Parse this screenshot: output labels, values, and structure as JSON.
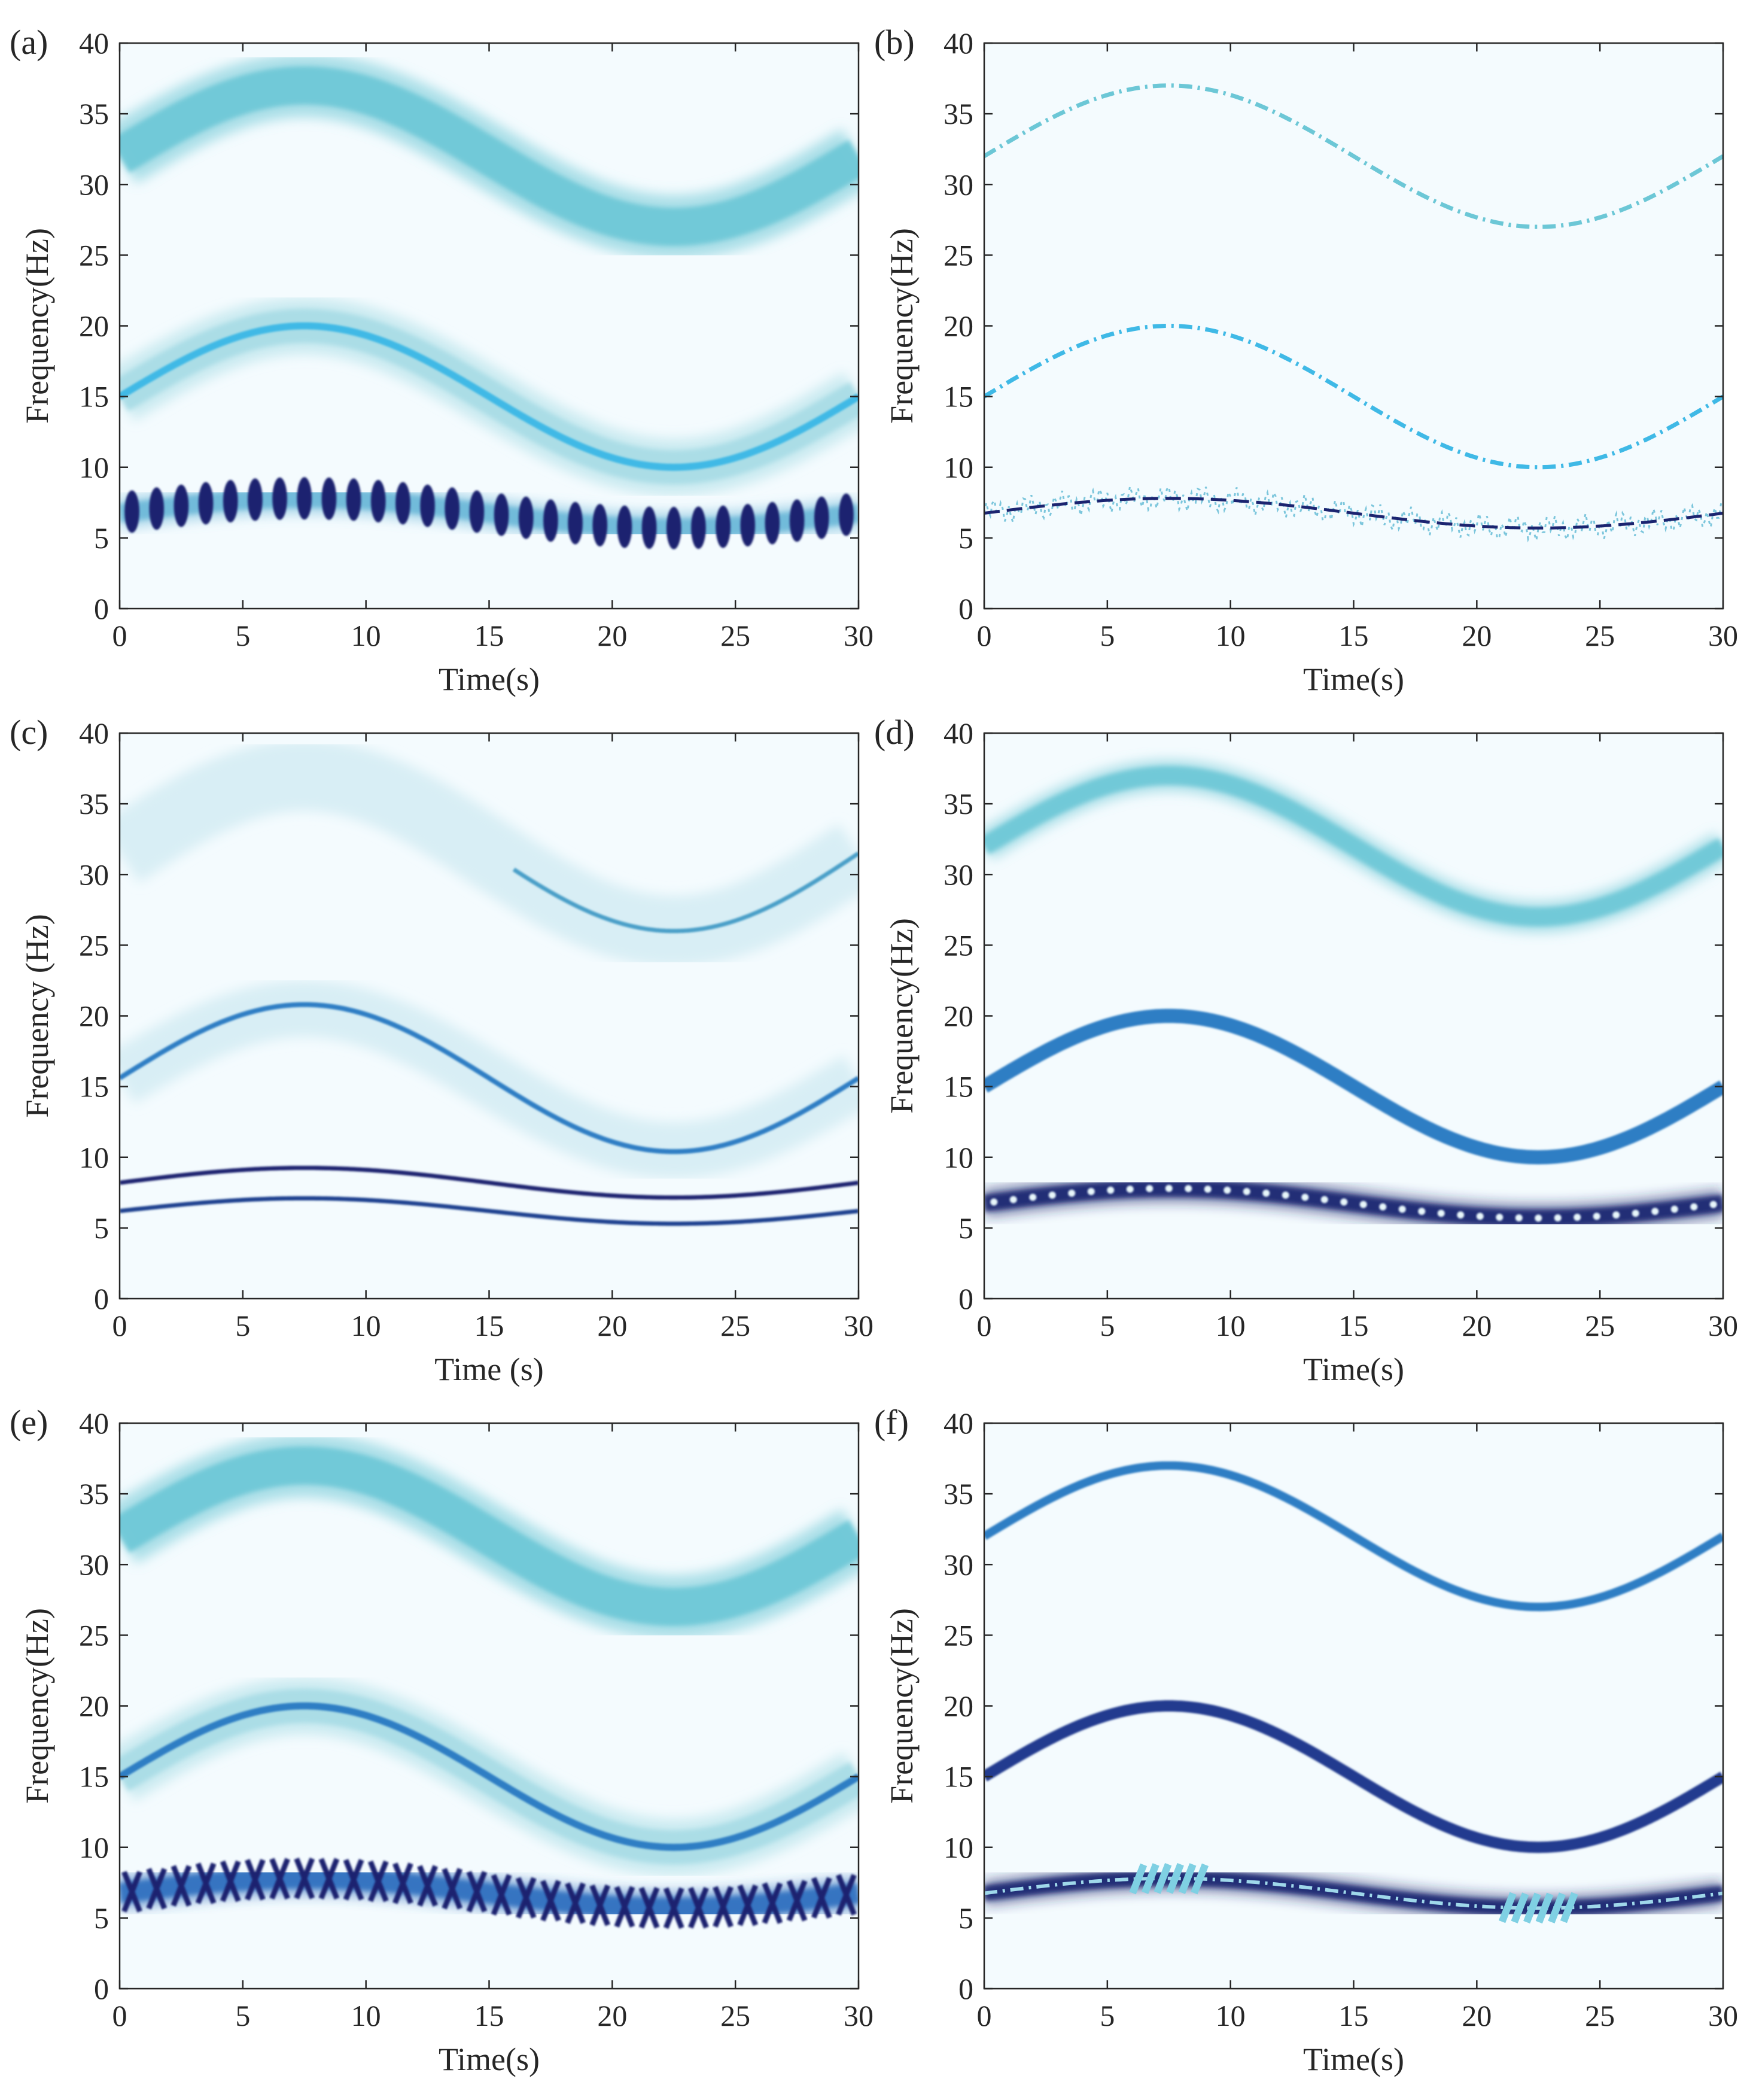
{
  "colors": {
    "background": "#f4fbfe",
    "cyan_band": "#6cc7d6",
    "light_band": "#a7dce6",
    "bright_cyan": "#3fb9e6",
    "mid_blue": "#2f7ec4",
    "dark_navy": "#1b2470",
    "axis": "#262626"
  },
  "chart_data": [
    {
      "panel": "(a)",
      "type": "heatmap",
      "xlabel": "Time(s)",
      "ylabel": "Frequency(Hz)",
      "xlim": [
        0,
        30
      ],
      "ylim": [
        0,
        40
      ],
      "xticks": [
        0,
        5,
        10,
        15,
        20,
        25,
        30
      ],
      "yticks": [
        0,
        5,
        10,
        15,
        20,
        25,
        30,
        35,
        40
      ],
      "grid": false,
      "series": [
        {
          "name": "component-1",
          "center": 32,
          "amplitude": 5,
          "period": 30,
          "sign": 1,
          "width_hz": 4.5,
          "color": "#6cc7d6",
          "style": "band"
        },
        {
          "name": "component-2",
          "center": 15,
          "amplitude": 5,
          "period": 30,
          "sign": 1,
          "width_hz": 4.0,
          "color": "#a7dce6",
          "style": "band"
        },
        {
          "name": "component-2-ridge",
          "center": 15,
          "amplitude": 5,
          "period": 30,
          "sign": 1,
          "width_hz": 0.5,
          "color": "#3fb9e6",
          "style": "ridge"
        },
        {
          "name": "component-3",
          "center": 6.75,
          "amplitude": 1.05,
          "period": 30,
          "sign": 1,
          "width_hz": 2.2,
          "color": "#6cb8d8",
          "style": "band"
        },
        {
          "name": "component-3-blobs",
          "center": 6.75,
          "amplitude": 1.05,
          "period": 30,
          "sign": 1,
          "count": 30,
          "width_hz": 3.0,
          "color": "#1b2470",
          "style": "blobs"
        }
      ]
    },
    {
      "panel": "(b)",
      "type": "heatmap",
      "xlabel": "Time(s)",
      "ylabel": "Frequency(Hz)",
      "xlim": [
        0,
        30
      ],
      "ylim": [
        0,
        40
      ],
      "xticks": [
        0,
        5,
        10,
        15,
        20,
        25,
        30
      ],
      "yticks": [
        0,
        5,
        10,
        15,
        20,
        25,
        30,
        35,
        40
      ],
      "grid": false,
      "series": [
        {
          "name": "component-1",
          "center": 32,
          "amplitude": 5,
          "period": 30,
          "sign": 1,
          "width_hz": 0.3,
          "color": "#6cc7d6",
          "style": "dashed"
        },
        {
          "name": "component-2",
          "center": 15,
          "amplitude": 5,
          "period": 30,
          "sign": 1,
          "width_hz": 0.3,
          "color": "#3fb9e6",
          "style": "dashed"
        },
        {
          "name": "component-3",
          "center": 6.75,
          "amplitude": 1.05,
          "period": 30,
          "sign": 1,
          "width_hz": 0.35,
          "color": "#1b2470",
          "style": "jitter"
        }
      ]
    },
    {
      "panel": "(c)",
      "type": "heatmap",
      "xlabel": "Time (s)",
      "ylabel": "Frequency (Hz)",
      "xlim": [
        0,
        30
      ],
      "ylim": [
        0,
        40
      ],
      "xticks": [
        0,
        5,
        10,
        15,
        20,
        25,
        30
      ],
      "yticks": [
        0,
        5,
        10,
        15,
        20,
        25,
        30,
        35,
        40
      ],
      "grid": false,
      "series": [
        {
          "name": "smear-upper",
          "center": 31.5,
          "amplitude": 5.5,
          "period": 30,
          "sign": 1,
          "width_hz": 5.0,
          "color": "#cfeaf2",
          "style": "smear"
        },
        {
          "name": "smear-middle",
          "center": 15.5,
          "amplitude": 5,
          "period": 30,
          "sign": 1,
          "width_hz": 4.0,
          "color": "#cfeaf2",
          "style": "smear"
        },
        {
          "name": "ridge-middle",
          "center": 15.6,
          "amplitude": 5.2,
          "period": 30,
          "sign": 1,
          "width_hz": 0.35,
          "color": "#2f7ec4",
          "style": "ridge"
        },
        {
          "name": "ridge-upper-right",
          "center": 31.5,
          "amplitude": 5.5,
          "period": 30,
          "sign": 1,
          "width_hz": 0.3,
          "color": "#4a9fc8",
          "style": "ridge",
          "t_range": [
            16,
            30
          ]
        },
        {
          "name": "ridge-low-a",
          "center": 8.2,
          "amplitude": 1.05,
          "period": 30,
          "sign": 1,
          "width_hz": 0.3,
          "color": "#1b2470",
          "style": "ridge"
        },
        {
          "name": "ridge-low-b",
          "center": 6.2,
          "amplitude": 0.9,
          "period": 30,
          "sign": 1,
          "width_hz": 0.3,
          "color": "#1f3f8f",
          "style": "ridge"
        }
      ]
    },
    {
      "panel": "(d)",
      "type": "heatmap",
      "xlabel": "Time(s)",
      "ylabel": "Frequency(Hz)",
      "xlim": [
        0,
        30
      ],
      "ylim": [
        0,
        40
      ],
      "xticks": [
        0,
        5,
        10,
        15,
        20,
        25,
        30
      ],
      "yticks": [
        0,
        5,
        10,
        15,
        20,
        25,
        30,
        35,
        40
      ],
      "grid": false,
      "series": [
        {
          "name": "component-1",
          "center": 32,
          "amplitude": 5,
          "period": 30,
          "sign": 1,
          "width_hz": 2.2,
          "color": "#6cc7d6",
          "style": "band"
        },
        {
          "name": "component-2",
          "center": 15,
          "amplitude": 5,
          "period": 30,
          "sign": 1,
          "width_hz": 1.0,
          "color": "#2f7ec4",
          "style": "ridge"
        },
        {
          "name": "component-3",
          "center": 6.75,
          "amplitude": 1.05,
          "period": 30,
          "sign": 1,
          "width_hz": 2.0,
          "color": "#1b2470",
          "style": "band"
        },
        {
          "name": "component-3-dots",
          "center": 6.75,
          "amplitude": 1.05,
          "period": 30,
          "sign": 1,
          "count": 38,
          "width_hz": 0.5,
          "color": "#e8f7fb",
          "style": "dots"
        }
      ]
    },
    {
      "panel": "(e)",
      "type": "heatmap",
      "xlabel": "Time(s)",
      "ylabel": "Frequency(Hz)",
      "xlim": [
        0,
        30
      ],
      "ylim": [
        0,
        40
      ],
      "xticks": [
        0,
        5,
        10,
        15,
        20,
        25,
        30
      ],
      "yticks": [
        0,
        5,
        10,
        15,
        20,
        25,
        30,
        35,
        40
      ],
      "grid": false,
      "series": [
        {
          "name": "component-1",
          "center": 32,
          "amplitude": 5,
          "period": 30,
          "sign": 1,
          "width_hz": 4.5,
          "color": "#6cc7d6",
          "style": "band"
        },
        {
          "name": "component-2",
          "center": 15,
          "amplitude": 5,
          "period": 30,
          "sign": 1,
          "width_hz": 4.0,
          "color": "#a7dce6",
          "style": "band"
        },
        {
          "name": "component-2-ridge",
          "center": 15,
          "amplitude": 5,
          "period": 30,
          "sign": 1,
          "width_hz": 0.5,
          "color": "#2f7ec4",
          "style": "ridge"
        },
        {
          "name": "component-3",
          "center": 6.75,
          "amplitude": 1.05,
          "period": 30,
          "sign": 1,
          "width_hz": 2.4,
          "color": "#2f6fbf",
          "style": "band"
        },
        {
          "name": "component-3-x",
          "center": 6.75,
          "amplitude": 1.05,
          "period": 30,
          "sign": 1,
          "count": 30,
          "width_hz": 2.8,
          "color": "#1b2470",
          "style": "xmarks"
        }
      ]
    },
    {
      "panel": "(f)",
      "type": "heatmap",
      "xlabel": "Time(s)",
      "ylabel": "Frequency(Hz)",
      "xlim": [
        0,
        30
      ],
      "ylim": [
        0,
        40
      ],
      "xticks": [
        0,
        5,
        10,
        15,
        20,
        25,
        30
      ],
      "yticks": [
        0,
        5,
        10,
        15,
        20,
        25,
        30,
        35,
        40
      ],
      "grid": false,
      "series": [
        {
          "name": "component-1",
          "center": 32,
          "amplitude": 5,
          "period": 30,
          "sign": 1,
          "width_hz": 0.6,
          "color": "#2f7ec4",
          "style": "ridge"
        },
        {
          "name": "component-2",
          "center": 15,
          "amplitude": 5,
          "period": 30,
          "sign": 1,
          "width_hz": 0.8,
          "color": "#223a8f",
          "style": "ridge"
        },
        {
          "name": "component-3",
          "center": 6.75,
          "amplitude": 1.05,
          "period": 30,
          "sign": 1,
          "width_hz": 1.8,
          "color": "#1b2470",
          "style": "band"
        },
        {
          "name": "component-3-center",
          "center": 6.75,
          "amplitude": 1.05,
          "period": 30,
          "sign": 1,
          "width_hz": 0.25,
          "color": "#9fd8ea",
          "style": "dashed"
        },
        {
          "name": "hatch-left",
          "center": 6.75,
          "amplitude": 1.05,
          "period": 30,
          "sign": 1,
          "t_range": [
            6,
            9
          ],
          "width_hz": 2.0,
          "color": "#7fd0e3",
          "style": "hatch"
        },
        {
          "name": "hatch-right",
          "center": 6.75,
          "amplitude": 1.05,
          "period": 30,
          "sign": 1,
          "t_range": [
            21,
            24
          ],
          "width_hz": 2.0,
          "color": "#7fd0e3",
          "style": "hatch"
        }
      ]
    }
  ]
}
